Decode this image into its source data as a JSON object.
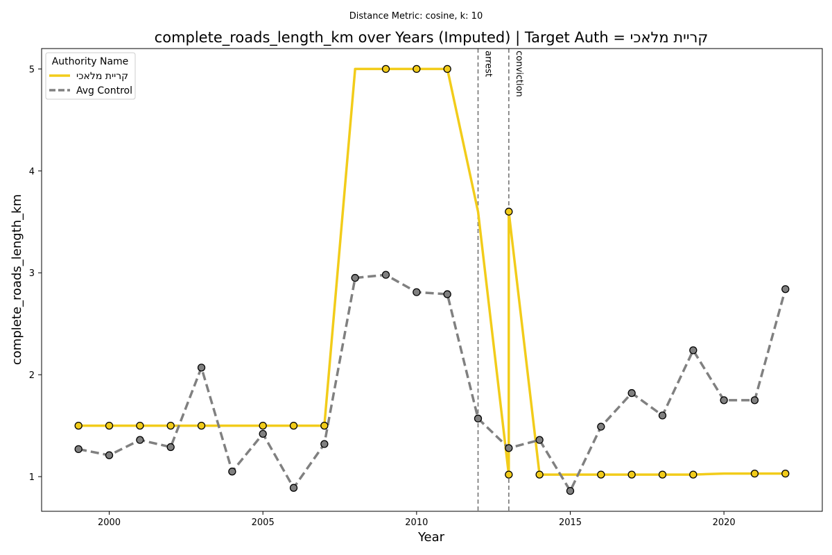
{
  "chart_data": {
    "type": "line",
    "suptitle": "Distance Metric: cosine, k: 10",
    "title": "complete_roads_length_km over Years (Imputed) | Target Auth = קריית מלאכי",
    "xlabel": "Year",
    "ylabel": "complete_roads_length_km",
    "xlim": [
      1997.8,
      2023.2
    ],
    "ylim": [
      0.66,
      5.2
    ],
    "x_ticks": [
      2000,
      2005,
      2010,
      2015,
      2020
    ],
    "y_ticks": [
      1,
      2,
      3,
      4,
      5
    ],
    "legend": {
      "title": "Authority Name",
      "placement": "top-left",
      "entries": [
        "קריית מלאכי",
        "Avg Control"
      ]
    },
    "grid": false,
    "events": [
      {
        "x": 2012,
        "label": "arrest"
      },
      {
        "x": 2013,
        "label": "conviction"
      }
    ],
    "series": [
      {
        "name": "קריית מלאכי",
        "color": "#f2cc1a",
        "style": "solid",
        "x": [
          1999,
          2000,
          2001,
          2002,
          2003,
          2004,
          2005,
          2006,
          2007,
          2008,
          2009,
          2010,
          2011,
          2012,
          2013,
          2013,
          2014,
          2015,
          2016,
          2017,
          2018,
          2019,
          2020,
          2021,
          2022
        ],
        "values": [
          1.5,
          1.5,
          1.5,
          1.5,
          1.5,
          1.5,
          1.5,
          1.5,
          1.5,
          5.0,
          5.0,
          5.0,
          5.0,
          3.6,
          1.02,
          3.6,
          1.02,
          1.02,
          1.02,
          1.02,
          1.02,
          1.02,
          1.03,
          1.03,
          1.03
        ],
        "markers": [
          {
            "x": 1999,
            "y": 1.5
          },
          {
            "x": 2000,
            "y": 1.5
          },
          {
            "x": 2001,
            "y": 1.5
          },
          {
            "x": 2002,
            "y": 1.5
          },
          {
            "x": 2003,
            "y": 1.5
          },
          {
            "x": 2005,
            "y": 1.5
          },
          {
            "x": 2006,
            "y": 1.5
          },
          {
            "x": 2007,
            "y": 1.5
          },
          {
            "x": 2009,
            "y": 5.0
          },
          {
            "x": 2010,
            "y": 5.0
          },
          {
            "x": 2011,
            "y": 5.0
          },
          {
            "x": 2013,
            "y": 3.6
          },
          {
            "x": 2013,
            "y": 1.02
          },
          {
            "x": 2014,
            "y": 1.02
          },
          {
            "x": 2016,
            "y": 1.02
          },
          {
            "x": 2017,
            "y": 1.02
          },
          {
            "x": 2018,
            "y": 1.02
          },
          {
            "x": 2019,
            "y": 1.02
          },
          {
            "x": 2021,
            "y": 1.03
          },
          {
            "x": 2022,
            "y": 1.03
          }
        ]
      },
      {
        "name": "Avg Control",
        "color": "#808080",
        "style": "dashed",
        "x": [
          1999,
          2000,
          2001,
          2002,
          2003,
          2004,
          2005,
          2006,
          2007,
          2008,
          2009,
          2010,
          2011,
          2012,
          2013,
          2014,
          2015,
          2016,
          2017,
          2018,
          2019,
          2020,
          2021,
          2022
        ],
        "values": [
          1.27,
          1.21,
          1.36,
          1.29,
          2.07,
          1.05,
          1.42,
          0.89,
          1.32,
          2.95,
          2.98,
          2.81,
          2.79,
          1.57,
          1.28,
          1.36,
          0.86,
          1.49,
          1.82,
          1.6,
          2.24,
          1.75,
          1.75,
          2.84
        ],
        "markers": [
          {
            "x": 1999,
            "y": 1.27
          },
          {
            "x": 2000,
            "y": 1.21
          },
          {
            "x": 2001,
            "y": 1.36
          },
          {
            "x": 2002,
            "y": 1.29
          },
          {
            "x": 2003,
            "y": 2.07
          },
          {
            "x": 2004,
            "y": 1.05
          },
          {
            "x": 2005,
            "y": 1.42
          },
          {
            "x": 2006,
            "y": 0.89
          },
          {
            "x": 2007,
            "y": 1.32
          },
          {
            "x": 2008,
            "y": 2.95
          },
          {
            "x": 2009,
            "y": 2.98
          },
          {
            "x": 2010,
            "y": 2.81
          },
          {
            "x": 2011,
            "y": 2.79
          },
          {
            "x": 2012,
            "y": 1.57
          },
          {
            "x": 2013,
            "y": 1.28
          },
          {
            "x": 2014,
            "y": 1.36
          },
          {
            "x": 2015,
            "y": 0.86
          },
          {
            "x": 2016,
            "y": 1.49
          },
          {
            "x": 2017,
            "y": 1.82
          },
          {
            "x": 2018,
            "y": 1.6
          },
          {
            "x": 2019,
            "y": 2.24
          },
          {
            "x": 2020,
            "y": 1.75
          },
          {
            "x": 2021,
            "y": 1.75
          },
          {
            "x": 2022,
            "y": 2.84
          }
        ]
      }
    ]
  }
}
